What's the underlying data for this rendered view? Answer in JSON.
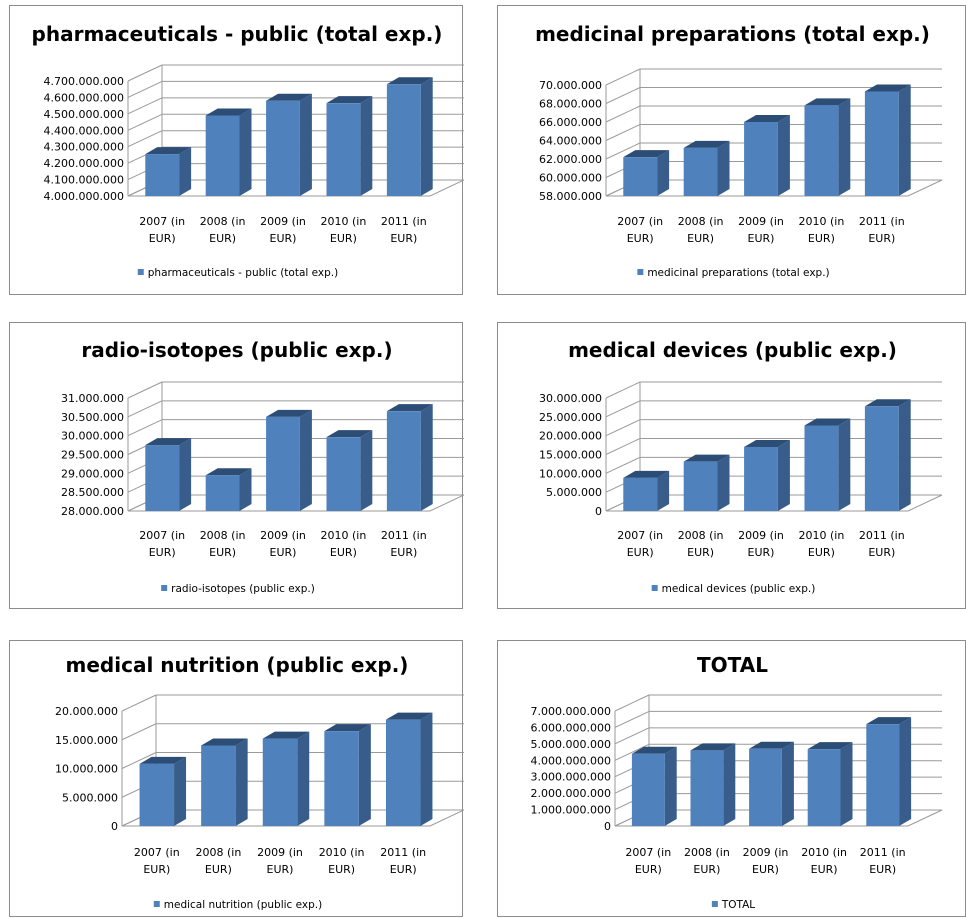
{
  "charts": [
    {
      "type": "bar",
      "title": "pharmaceuticals - public (total exp.)",
      "categories": [
        [
          "2007 (in",
          "EUR)"
        ],
        [
          "2008 (in",
          "EUR)"
        ],
        [
          "2009 (in",
          "EUR)"
        ],
        [
          "2010 (in",
          "EUR)"
        ],
        [
          "2011 (in",
          "EUR)"
        ]
      ],
      "series": [
        {
          "name": "pharmaceuticals - public (total exp.)",
          "values": [
            4255000000,
            4490000000,
            4580000000,
            4565000000,
            4680000000
          ]
        }
      ],
      "ylim": [
        4000000000,
        4700000000
      ],
      "ytick_step": 100000000,
      "ytick_labels": [
        "4.000.000.000",
        "4.100.000.000",
        "4.200.000.000",
        "4.300.000.000",
        "4.400.000.000",
        "4.500.000.000",
        "4.600.000.000",
        "4.700.000.000"
      ],
      "legend": "bottom"
    },
    {
      "type": "bar",
      "title": "medicinal preparations (total exp.)",
      "categories": [
        [
          "2007 (in",
          "EUR)"
        ],
        [
          "2008 (in",
          "EUR)"
        ],
        [
          "2009 (in",
          "EUR)"
        ],
        [
          "2010 (in",
          "EUR)"
        ],
        [
          "2011 (in",
          "EUR)"
        ]
      ],
      "series": [
        {
          "name": "medicinal preparations (total exp.)",
          "values": [
            62200000,
            63200000,
            66000000,
            67800000,
            69300000
          ]
        }
      ],
      "ylim": [
        58000000,
        70000000
      ],
      "ytick_step": 2000000,
      "ytick_labels": [
        "58.000.000",
        "60.000.000",
        "62.000.000",
        "64.000.000",
        "66.000.000",
        "68.000.000",
        "70.000.000"
      ],
      "legend": "bottom"
    },
    {
      "type": "bar",
      "title": "radio-isotopes (public exp.)",
      "categories": [
        [
          "2007 (in",
          "EUR)"
        ],
        [
          "2008 (in",
          "EUR)"
        ],
        [
          "2009 (in",
          "EUR)"
        ],
        [
          "2010 (in",
          "EUR)"
        ],
        [
          "2011 (in",
          "EUR)"
        ]
      ],
      "series": [
        {
          "name": "radio-isotopes (public exp.)",
          "values": [
            29750000,
            28950000,
            30500000,
            29960000,
            30650000
          ]
        }
      ],
      "ylim": [
        28000000,
        31000000
      ],
      "ytick_step": 500000,
      "ytick_labels": [
        "28.000.000",
        "28.500.000",
        "29.000.000",
        "29.500.000",
        "30.000.000",
        "30.500.000",
        "31.000.000"
      ],
      "legend": "bottom"
    },
    {
      "type": "bar",
      "title": "medical devices (public exp.)",
      "categories": [
        [
          "2007 (in",
          "EUR)"
        ],
        [
          "2008 (in",
          "EUR)"
        ],
        [
          "2009 (in",
          "EUR)"
        ],
        [
          "2010 (in",
          "EUR)"
        ],
        [
          "2011 (in",
          "EUR)"
        ]
      ],
      "series": [
        {
          "name": "medical devices (public exp.)",
          "values": [
            8800000,
            13100000,
            17000000,
            22700000,
            27800000
          ]
        }
      ],
      "ylim": [
        0,
        30000000
      ],
      "ytick_step": 5000000,
      "ytick_labels": [
        "0",
        "5.000.000",
        "10.000.000",
        "15.000.000",
        "20.000.000",
        "25.000.000",
        "30.000.000"
      ],
      "legend": "bottom"
    },
    {
      "type": "bar",
      "title": "medical nutrition (public exp.)",
      "categories": [
        [
          "2007 (in",
          "EUR)"
        ],
        [
          "2008 (in",
          "EUR)"
        ],
        [
          "2009 (in",
          "EUR)"
        ],
        [
          "2010 (in",
          "EUR)"
        ],
        [
          "2011 (in",
          "EUR)"
        ]
      ],
      "series": [
        {
          "name": "medical nutrition (public exp.)",
          "values": [
            10800000,
            14000000,
            15200000,
            16500000,
            18500000
          ]
        }
      ],
      "ylim": [
        0,
        20000000
      ],
      "ytick_step": 5000000,
      "ytick_labels": [
        "0",
        "5.000.000",
        "10.000.000",
        "15.000.000",
        "20.000.000"
      ],
      "legend": "bottom"
    },
    {
      "type": "bar",
      "title": "TOTAL",
      "categories": [
        [
          "2007 (in",
          "EUR)"
        ],
        [
          "2008 (in",
          "EUR)"
        ],
        [
          "2009 (in",
          "EUR)"
        ],
        [
          "2010 (in",
          "EUR)"
        ],
        [
          "2011 (in",
          "EUR)"
        ]
      ],
      "series": [
        {
          "name": "TOTAL",
          "values": [
            4400000000,
            4600000000,
            4700000000,
            4680000000,
            6200000000
          ]
        }
      ],
      "ylim": [
        0,
        7000000000
      ],
      "ytick_step": 1000000000,
      "ytick_labels": [
        "0",
        "1.000.000.000",
        "2.000.000.000",
        "3.000.000.000",
        "4.000.000.000",
        "5.000.000.000",
        "6.000.000.000",
        "7.000.000.000"
      ],
      "legend": "bottom"
    }
  ],
  "colors": {
    "bar_front": "#4f81bd",
    "bar_side": "#385d8a",
    "bar_top": "#2c4d75",
    "gridline": "#9a9a9a"
  }
}
